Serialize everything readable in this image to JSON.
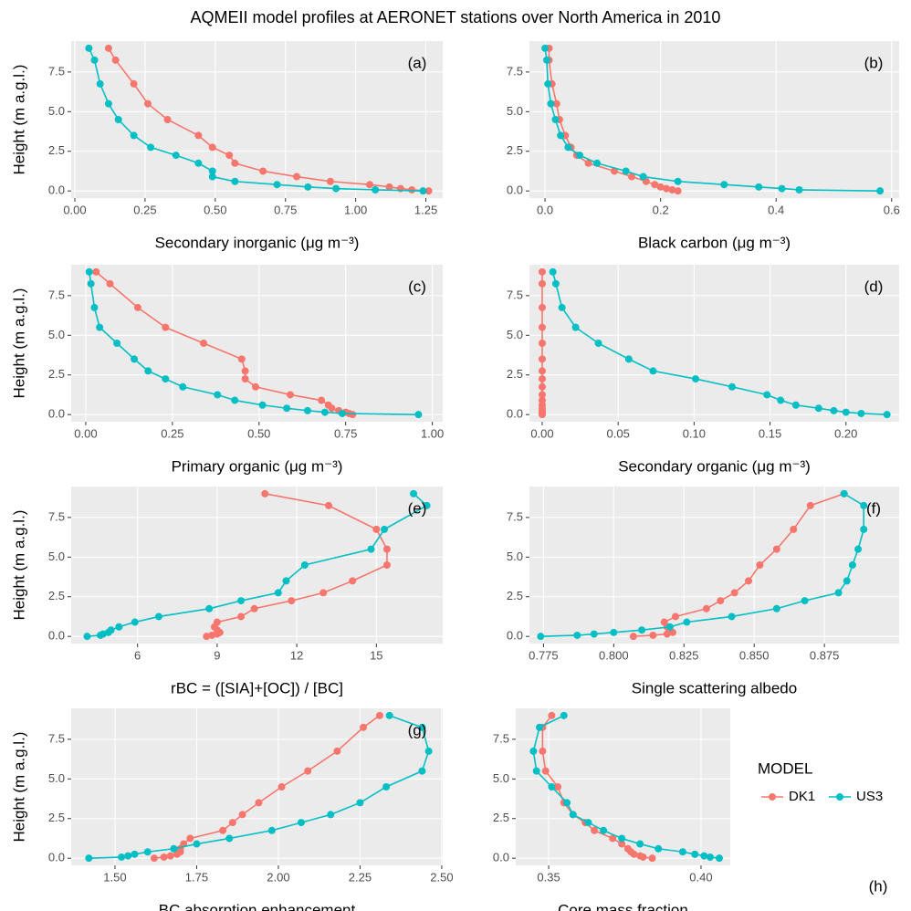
{
  "title": "AQMEII model profiles at AERONET stations over North America in 2010",
  "legend_title": "MODEL",
  "chart_data": [
    {
      "type": "line",
      "label": "(a)",
      "x_label": "Secondary inorganic (μg m⁻³)",
      "y_label": "Height (m a.g.l.)",
      "xlim": [
        -0.013,
        1.31
      ],
      "ylim": [
        -0.45,
        9.45
      ],
      "xticks": [
        {
          "value": 0,
          "label": "0.00"
        },
        0.25,
        {
          "value": 0.5,
          "label": "0.50"
        },
        0.75,
        {
          "value": 1,
          "label": "1.00"
        },
        1.25
      ],
      "yticks": [
        {
          "value": 0,
          "label": "0.0"
        },
        2.5,
        {
          "value": 5,
          "label": "5.0"
        },
        7.5
      ],
      "grid": true,
      "y": [
        9.0,
        8.25,
        6.75,
        5.5,
        4.5,
        3.5,
        2.75,
        2.25,
        1.75,
        1.25,
        0.9,
        0.6,
        0.4,
        0.25,
        0.15,
        0.07,
        0.0
      ],
      "series": [
        {
          "name": "DK1",
          "color": "#F8766D",
          "x": [
            0.12,
            0.145,
            0.21,
            0.26,
            0.33,
            0.44,
            0.49,
            0.55,
            0.57,
            0.67,
            0.79,
            0.91,
            1.05,
            1.12,
            1.16,
            1.2,
            1.26
          ]
        },
        {
          "name": "US3",
          "color": "#00BFC4",
          "x": [
            0.05,
            0.07,
            0.09,
            0.12,
            0.155,
            0.21,
            0.27,
            0.36,
            0.44,
            0.49,
            0.49,
            0.57,
            0.72,
            0.83,
            0.93,
            1.07,
            1.24
          ]
        }
      ]
    },
    {
      "type": "line",
      "label": "(b)",
      "x_label": "Black carbon (μg m⁻³)",
      "xlim": [
        -0.027,
        0.613
      ],
      "ylim": [
        -0.45,
        9.45
      ],
      "xticks": [
        {
          "value": 0,
          "label": "0.0"
        },
        0.2,
        0.4,
        0.6
      ],
      "yticks": [
        {
          "value": 0,
          "label": "0.0"
        },
        2.5,
        {
          "value": 5,
          "label": "5.0"
        },
        7.5
      ],
      "grid": true,
      "y": [
        9.0,
        8.25,
        6.75,
        5.5,
        4.5,
        3.5,
        2.75,
        2.25,
        1.75,
        1.25,
        0.9,
        0.6,
        0.4,
        0.25,
        0.15,
        0.07,
        0.0
      ],
      "series": [
        {
          "name": "DK1",
          "color": "#F8766D",
          "x": [
            0.007,
            0.007,
            0.012,
            0.02,
            0.025,
            0.035,
            0.045,
            0.055,
            0.075,
            0.12,
            0.15,
            0.175,
            0.19,
            0.2,
            0.21,
            0.22,
            0.23
          ]
        },
        {
          "name": "US3",
          "color": "#00BFC4",
          "x": [
            0.0,
            0.003,
            0.005,
            0.01,
            0.018,
            0.027,
            0.04,
            0.06,
            0.09,
            0.14,
            0.17,
            0.23,
            0.31,
            0.37,
            0.41,
            0.44,
            0.58
          ]
        }
      ]
    },
    {
      "type": "line",
      "label": "(c)",
      "x_label": "Primary organic (μg m⁻³)",
      "y_label": "Height (m a.g.l.)",
      "xlim": [
        -0.042,
        1.03
      ],
      "ylim": [
        -0.45,
        9.45
      ],
      "xticks": [
        {
          "value": 0,
          "label": "0.00"
        },
        0.25,
        {
          "value": 0.5,
          "label": "0.50"
        },
        0.75,
        {
          "value": 1,
          "label": "1.00"
        }
      ],
      "yticks": [
        {
          "value": 0,
          "label": "0.0"
        },
        2.5,
        {
          "value": 5,
          "label": "5.0"
        },
        7.5
      ],
      "grid": true,
      "y": [
        9.0,
        8.25,
        6.75,
        5.5,
        4.5,
        3.5,
        2.75,
        2.25,
        1.75,
        1.25,
        0.9,
        0.6,
        0.4,
        0.25,
        0.15,
        0.07,
        0.0
      ],
      "series": [
        {
          "name": "DK1",
          "color": "#F8766D",
          "x": [
            0.03,
            0.07,
            0.15,
            0.23,
            0.34,
            0.45,
            0.46,
            0.46,
            0.49,
            0.59,
            0.68,
            0.7,
            0.71,
            0.73,
            0.75,
            0.76,
            0.77
          ]
        },
        {
          "name": "US3",
          "color": "#00BFC4",
          "x": [
            0.01,
            0.015,
            0.025,
            0.04,
            0.09,
            0.14,
            0.18,
            0.23,
            0.28,
            0.38,
            0.43,
            0.51,
            0.58,
            0.64,
            0.69,
            0.74,
            0.96
          ]
        }
      ]
    },
    {
      "type": "line",
      "label": "(d)",
      "x_label": "Secondary organic (μg m⁻³)",
      "xlim": [
        -0.0084,
        0.235
      ],
      "ylim": [
        -0.45,
        9.45
      ],
      "xticks": [
        {
          "value": 0,
          "label": "0.00"
        },
        0.05,
        {
          "value": 0.1,
          "label": "0.10"
        },
        0.15,
        {
          "value": 0.2,
          "label": "0.20"
        }
      ],
      "yticks": [
        {
          "value": 0,
          "label": "0.0"
        },
        2.5,
        {
          "value": 5,
          "label": "5.0"
        },
        7.5
      ],
      "grid": true,
      "y": [
        9.0,
        8.25,
        6.75,
        5.5,
        4.5,
        3.5,
        2.75,
        2.25,
        1.75,
        1.25,
        0.9,
        0.6,
        0.4,
        0.25,
        0.15,
        0.07,
        0.0
      ],
      "series": [
        {
          "name": "DK1",
          "color": "#F8766D",
          "x": [
            0.0,
            0.0,
            0.0,
            0.0,
            0.0,
            0.0,
            0.0,
            0.0,
            0.0,
            0.0,
            0.0,
            0.0,
            0.0,
            0.0,
            0.0,
            0.0,
            0.0
          ]
        },
        {
          "name": "US3",
          "color": "#00BFC4",
          "x": [
            0.007,
            0.009,
            0.013,
            0.022,
            0.037,
            0.057,
            0.073,
            0.101,
            0.125,
            0.148,
            0.157,
            0.167,
            0.182,
            0.192,
            0.2,
            0.21,
            0.227
          ]
        }
      ]
    },
    {
      "type": "line",
      "label": "(e)",
      "x_label": "rBC = ([SIA]+[OC]) / [BC]",
      "y_label": "Height (m a.g.l.)",
      "xlim": [
        3.5,
        17.5
      ],
      "ylim": [
        -0.45,
        9.45
      ],
      "xticks": [
        6,
        9,
        12,
        15
      ],
      "yticks": [
        {
          "value": 0,
          "label": "0.0"
        },
        2.5,
        {
          "value": 5,
          "label": "5.0"
        },
        7.5
      ],
      "grid": true,
      "y": [
        9.0,
        8.25,
        6.75,
        5.5,
        4.5,
        3.5,
        2.75,
        2.25,
        1.75,
        1.25,
        0.9,
        0.6,
        0.4,
        0.25,
        0.15,
        0.07,
        0.0
      ],
      "series": [
        {
          "name": "DK1",
          "color": "#F8766D",
          "x": [
            10.8,
            13.2,
            15.0,
            15.4,
            15.4,
            14.1,
            13.0,
            11.8,
            10.4,
            9.9,
            9.0,
            8.9,
            9.0,
            9.1,
            9.0,
            8.8,
            8.6
          ]
        },
        {
          "name": "US3",
          "color": "#00BFC4",
          "x": [
            16.4,
            16.9,
            15.3,
            14.8,
            12.3,
            11.6,
            11.3,
            9.9,
            8.7,
            6.8,
            5.9,
            5.3,
            5.0,
            4.9,
            4.7,
            4.6,
            4.1
          ]
        }
      ]
    },
    {
      "type": "line",
      "label": "(f)",
      "x_label": "Single scattering albedo",
      "xlim": [
        0.77,
        0.9016
      ],
      "ylim": [
        -0.45,
        9.45
      ],
      "xticks": [
        0.775,
        {
          "value": 0.8,
          "label": "0.800"
        },
        0.825,
        {
          "value": 0.85,
          "label": "0.850"
        },
        0.875
      ],
      "yticks": [
        {
          "value": 0,
          "label": "0.0"
        },
        2.5,
        {
          "value": 5,
          "label": "5.0"
        },
        7.5
      ],
      "grid": true,
      "y": [
        9.0,
        8.25,
        6.75,
        5.5,
        4.5,
        3.5,
        2.75,
        2.25,
        1.75,
        1.25,
        0.9,
        0.6,
        0.4,
        0.25,
        0.15,
        0.07,
        0.0
      ],
      "series": [
        {
          "name": "DK1",
          "color": "#F8766D",
          "x": [
            0.882,
            0.87,
            0.864,
            0.858,
            0.852,
            0.848,
            0.843,
            0.838,
            0.833,
            0.822,
            0.818,
            0.819,
            0.82,
            0.821,
            0.819,
            0.814,
            0.807
          ]
        },
        {
          "name": "US3",
          "color": "#00BFC4",
          "x": [
            0.882,
            0.889,
            0.889,
            0.887,
            0.885,
            0.883,
            0.88,
            0.868,
            0.858,
            0.842,
            0.826,
            0.82,
            0.81,
            0.8,
            0.793,
            0.787,
            0.774
          ]
        }
      ]
    },
    {
      "type": "line",
      "label": "(g)",
      "x_label": "BC absorption enhancement",
      "y_label": "Height (m a.g.l.)",
      "xlim": [
        1.366,
        2.503
      ],
      "ylim": [
        -0.45,
        9.45
      ],
      "xticks": [
        {
          "value": 1.5,
          "label": "1.50"
        },
        1.75,
        {
          "value": 2,
          "label": "2.00"
        },
        2.25,
        {
          "value": 2.5,
          "label": "2.50"
        }
      ],
      "yticks": [
        {
          "value": 0,
          "label": "0.0"
        },
        2.5,
        {
          "value": 5,
          "label": "5.0"
        },
        7.5
      ],
      "grid": true,
      "y": [
        9.0,
        8.25,
        6.75,
        5.5,
        4.5,
        3.5,
        2.75,
        2.25,
        1.75,
        1.25,
        0.9,
        0.6,
        0.4,
        0.25,
        0.15,
        0.07,
        0.0
      ],
      "series": [
        {
          "name": "DK1",
          "color": "#F8766D",
          "x": [
            2.31,
            2.26,
            2.18,
            2.09,
            2.01,
            1.94,
            1.89,
            1.86,
            1.83,
            1.73,
            1.71,
            1.7,
            1.7,
            1.69,
            1.67,
            1.65,
            1.62
          ]
        },
        {
          "name": "US3",
          "color": "#00BFC4",
          "x": [
            2.34,
            2.44,
            2.46,
            2.44,
            2.33,
            2.25,
            2.16,
            2.07,
            1.98,
            1.85,
            1.75,
            1.68,
            1.6,
            1.56,
            1.54,
            1.52,
            1.42
          ]
        }
      ]
    },
    {
      "type": "line",
      "label": "(h)",
      "x_label": "Core mass fraction",
      "xlim": [
        0.3392,
        0.4096
      ],
      "ylim": [
        -0.45,
        9.45
      ],
      "xticks": [
        0.35,
        {
          "value": 0.4,
          "label": "0.40"
        }
      ],
      "yticks": [
        {
          "value": 0,
          "label": "0.0"
        },
        2.5,
        {
          "value": 5,
          "label": "5.0"
        },
        7.5
      ],
      "grid": true,
      "y": [
        9.0,
        8.25,
        6.75,
        5.5,
        4.5,
        3.5,
        2.75,
        2.25,
        1.75,
        1.25,
        0.9,
        0.6,
        0.4,
        0.25,
        0.15,
        0.07,
        0.0
      ],
      "series": [
        {
          "name": "DK1",
          "color": "#F8766D",
          "x": [
            0.351,
            0.348,
            0.348,
            0.349,
            0.353,
            0.355,
            0.358,
            0.362,
            0.365,
            0.371,
            0.374,
            0.376,
            0.377,
            0.378,
            0.38,
            0.381,
            0.384
          ]
        },
        {
          "name": "US3",
          "color": "#00BFC4",
          "x": [
            0.355,
            0.347,
            0.345,
            0.346,
            0.351,
            0.356,
            0.358,
            0.363,
            0.368,
            0.374,
            0.38,
            0.386,
            0.394,
            0.398,
            0.401,
            0.403,
            0.406
          ]
        }
      ]
    }
  ]
}
